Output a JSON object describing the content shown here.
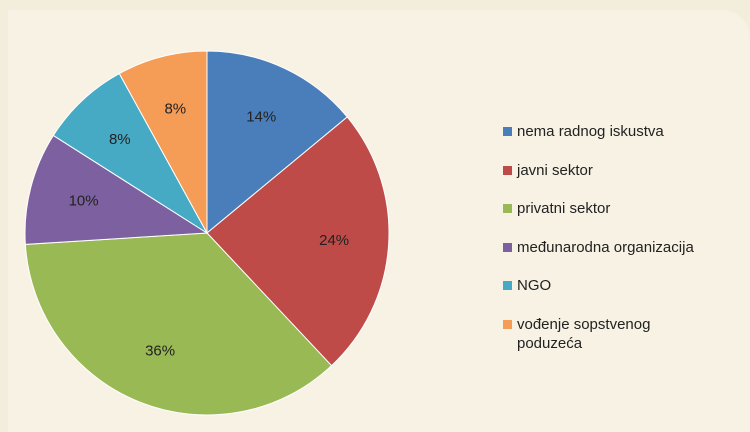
{
  "chart_data": {
    "type": "pie",
    "categories": [
      "nema radnog iskustva",
      "javni sektor",
      "privatni sektor",
      "međunarodna organizacija",
      "NGO",
      "vođenje sopstvenog poduzeća"
    ],
    "values": [
      14,
      24,
      36,
      10,
      8,
      8
    ],
    "value_labels": [
      "14%",
      "24%",
      "36%",
      "10%",
      "8%",
      "8%"
    ],
    "colors": [
      "#4a7ebb",
      "#be4b48",
      "#98b954",
      "#7d60a0",
      "#46aac5",
      "#f59d56"
    ],
    "legend": "right"
  }
}
